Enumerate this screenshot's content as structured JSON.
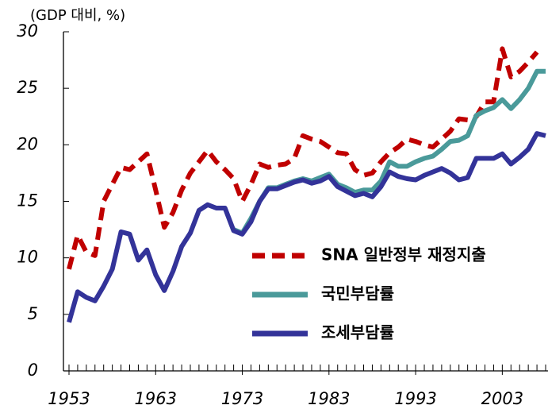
{
  "chart_data": {
    "type": "line",
    "unit_label": "(GDP 대비, %)",
    "x": [
      1953,
      1954,
      1955,
      1956,
      1957,
      1958,
      1959,
      1960,
      1961,
      1962,
      1963,
      1964,
      1965,
      1966,
      1967,
      1968,
      1969,
      1970,
      1971,
      1972,
      1973,
      1974,
      1975,
      1976,
      1977,
      1978,
      1979,
      1980,
      1981,
      1982,
      1983,
      1984,
      1985,
      1986,
      1987,
      1988,
      1989,
      1990,
      1991,
      1992,
      1993,
      1994,
      1995,
      1996,
      1997,
      1998,
      1999,
      2000,
      2001,
      2002,
      2003,
      2004,
      2005,
      2006,
      2007,
      2008
    ],
    "xlim": [
      1953,
      2008
    ],
    "xticks": [
      1953,
      1963,
      1973,
      1983,
      1993,
      2003
    ],
    "ylim": [
      0,
      30
    ],
    "yticks": [
      0,
      5,
      10,
      15,
      20,
      25,
      30
    ],
    "series": [
      {
        "name": "SNA 일반정부 재정지출",
        "color": "#c00000",
        "dashed": true,
        "values": [
          9,
          12,
          10.5,
          10.2,
          15,
          16.5,
          18,
          17.8,
          18.5,
          19.2,
          16,
          12.7,
          14,
          16,
          17.5,
          18.5,
          19.5,
          18.5,
          17.8,
          17,
          15,
          16.5,
          18.3,
          18,
          18.2,
          18.3,
          18.8,
          20.8,
          20.5,
          20.3,
          19.8,
          19.3,
          19.2,
          17.8,
          17.3,
          17.5,
          18.5,
          19.3,
          19.8,
          20.5,
          20.3,
          20,
          19.8,
          20.5,
          21.2,
          22.3,
          22.2,
          22.5,
          23.8,
          23.8,
          28.5,
          26,
          26.5,
          27.3,
          28.2,
          null
        ]
      },
      {
        "name": "국민부담률",
        "color": "#4a9a9a",
        "values": [
          null,
          null,
          null,
          null,
          null,
          null,
          null,
          null,
          null,
          null,
          null,
          null,
          null,
          null,
          null,
          null,
          null,
          null,
          null,
          12.5,
          12.2,
          13.5,
          15,
          16.2,
          16.2,
          16.5,
          16.8,
          17,
          16.8,
          17.1,
          17.4,
          16.5,
          16.2,
          15.8,
          16,
          16,
          16.8,
          18.5,
          18.1,
          18.1,
          18.5,
          18.8,
          19,
          19.6,
          20.3,
          20.4,
          20.8,
          22.6,
          23,
          23.3,
          24,
          23.2,
          24,
          25,
          26.5,
          26.5
        ]
      },
      {
        "name": "조세부담률",
        "color": "#333399",
        "values": [
          4.3,
          7,
          6.5,
          6.2,
          7.5,
          9,
          12.3,
          12.1,
          9.8,
          10.7,
          8.5,
          7.1,
          8.8,
          11,
          12.2,
          14.2,
          14.7,
          14.4,
          14.4,
          12.4,
          12.1,
          13.2,
          15,
          16.1,
          16.1,
          16.4,
          16.7,
          16.9,
          16.6,
          16.8,
          17.2,
          16.3,
          15.9,
          15.5,
          15.7,
          15.4,
          16.3,
          17.6,
          17.2,
          17,
          16.9,
          17.3,
          17.6,
          17.9,
          17.5,
          16.9,
          17.1,
          18.8,
          18.8,
          18.8,
          19.2,
          18.3,
          18.9,
          19.6,
          21,
          20.8
        ]
      }
    ]
  }
}
